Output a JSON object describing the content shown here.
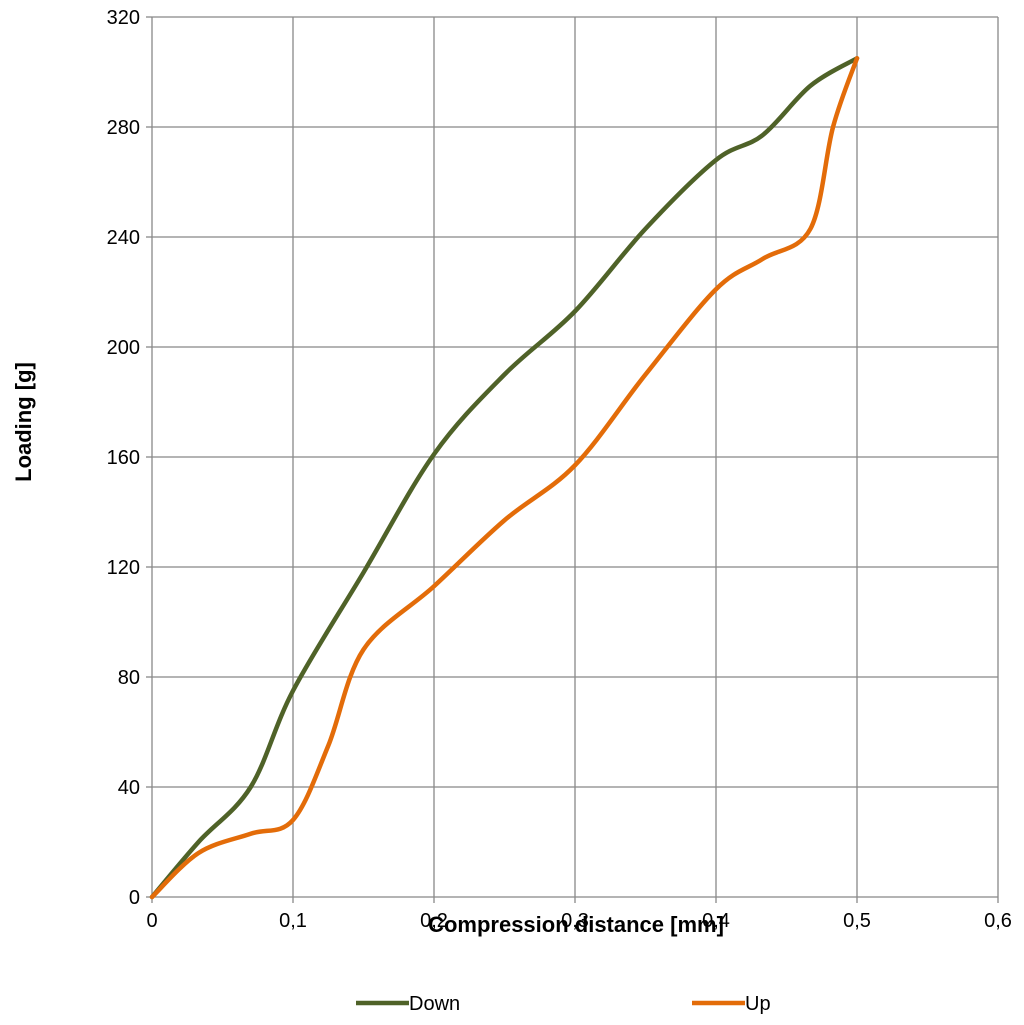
{
  "chart_data": {
    "type": "line",
    "title": "",
    "xlabel": "Compression distance [mm]",
    "ylabel": "Loading [g]",
    "xlim": [
      0,
      0.6
    ],
    "ylim": [
      0,
      320
    ],
    "x_ticks": [
      "0",
      "0,1",
      "0,2",
      "0,3",
      "0,4",
      "0,5",
      "0,6"
    ],
    "y_ticks": [
      "0",
      "40",
      "80",
      "120",
      "160",
      "200",
      "240",
      "280",
      "320"
    ],
    "grid": true,
    "legend_position": "bottom",
    "series": [
      {
        "name": "Down",
        "color": "#4f6228",
        "x": [
          0,
          0.033,
          0.07,
          0.1,
          0.15,
          0.2,
          0.25,
          0.3,
          0.35,
          0.4,
          0.433,
          0.467,
          0.5
        ],
        "y": [
          0,
          20,
          40,
          75,
          118,
          161,
          190,
          213,
          243,
          268,
          277,
          295,
          305
        ]
      },
      {
        "name": "Up",
        "color": "#e36c09",
        "x": [
          0,
          0.033,
          0.07,
          0.1,
          0.125,
          0.15,
          0.2,
          0.25,
          0.3,
          0.35,
          0.4,
          0.433,
          0.467,
          0.483,
          0.5
        ],
        "y": [
          0,
          16,
          23,
          28,
          55,
          90,
          113,
          137,
          157,
          190,
          221,
          232,
          243,
          280,
          305
        ]
      }
    ]
  }
}
